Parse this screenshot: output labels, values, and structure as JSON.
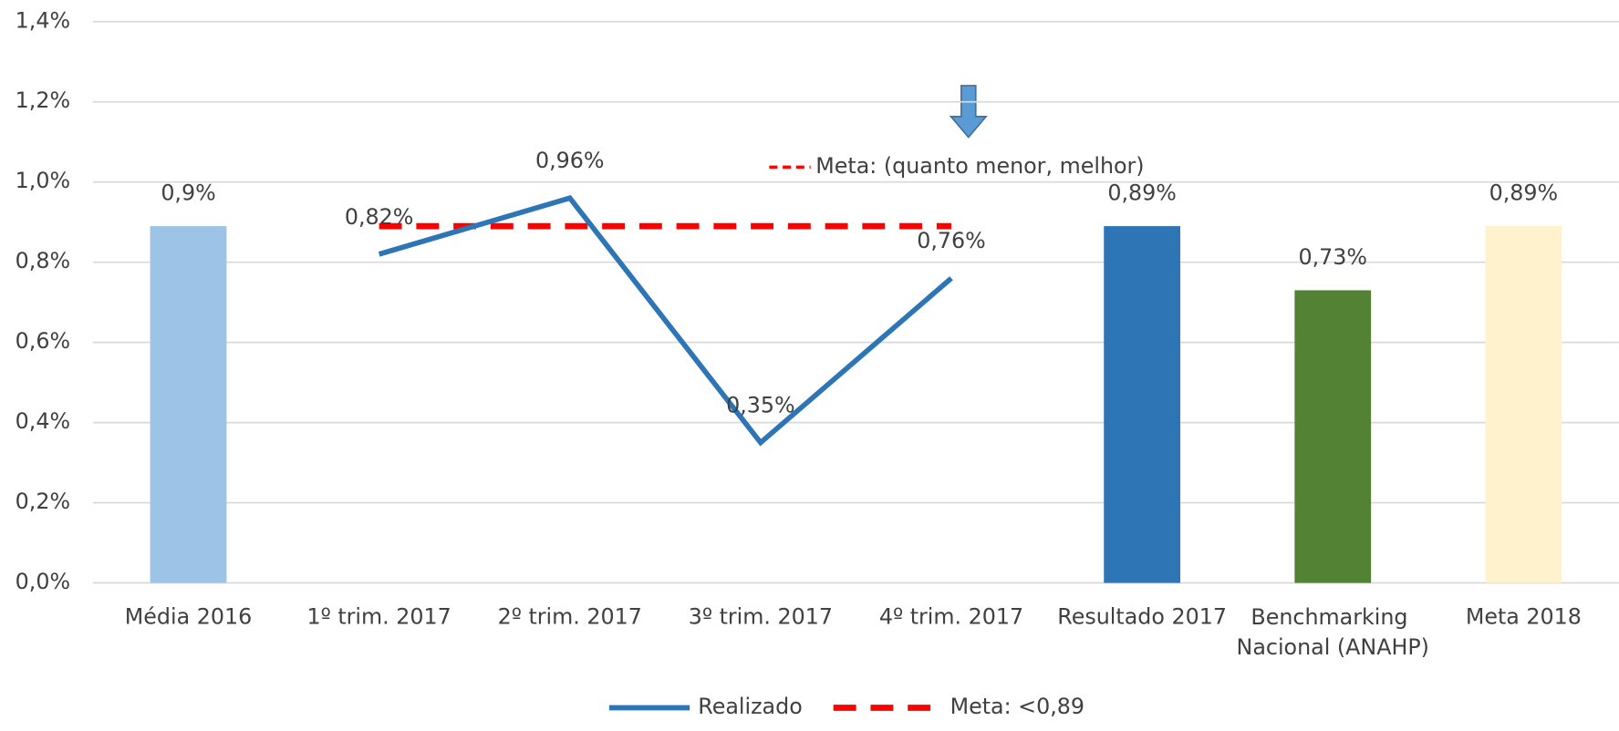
{
  "chart_data": {
    "type": "combo",
    "categories": [
      "Média 2016",
      "1º trim. 2017",
      "2º trim. 2017",
      "3º trim. 2017",
      "4º trim. 2017",
      "Resultado 2017",
      "Benchmarking Nacional (ANAHP)",
      "Meta 2018"
    ],
    "series": [
      {
        "type": "bar",
        "colors": [
          "#9DC3E6",
          null,
          null,
          null,
          null,
          "#2E75B6",
          "#548235",
          "#FFF2CC"
        ],
        "values": [
          0.89,
          null,
          null,
          null,
          null,
          0.89,
          0.73,
          0.89
        ],
        "value_labels": [
          "0,9%",
          null,
          null,
          null,
          null,
          "0,89%",
          "0,73%",
          "0,89%"
        ]
      },
      {
        "type": "line",
        "name": "Realizado",
        "color": "#2E75B6",
        "values": [
          null,
          0.82,
          0.96,
          0.35,
          0.76,
          null,
          null,
          null
        ],
        "value_labels": [
          null,
          "0,82%",
          "0,96%",
          "0,35%",
          "0,76%",
          null,
          null,
          null
        ]
      },
      {
        "type": "line",
        "dashed": true,
        "name": "Meta: <0,89",
        "color": "#FF0000",
        "values": [
          null,
          0.89,
          0.89,
          0.89,
          0.89,
          null,
          null,
          null
        ]
      }
    ],
    "annotation": "Meta: (quanto menor, melhor)",
    "ylim": [
      0,
      1.4
    ],
    "yticks": [
      {
        "value": 0,
        "label": "0,0%"
      },
      {
        "value": 0.2,
        "label": "0,2%"
      },
      {
        "value": 0.4,
        "label": "0,4%"
      },
      {
        "value": 0.6,
        "label": "0,6%"
      },
      {
        "value": 0.8,
        "label": "0,8%"
      },
      {
        "value": 1.0,
        "label": "1,0%"
      },
      {
        "value": 1.2,
        "label": "1,2%"
      },
      {
        "value": 1.4,
        "label": "1,4%"
      }
    ],
    "grid": true,
    "legend": "bottom"
  }
}
